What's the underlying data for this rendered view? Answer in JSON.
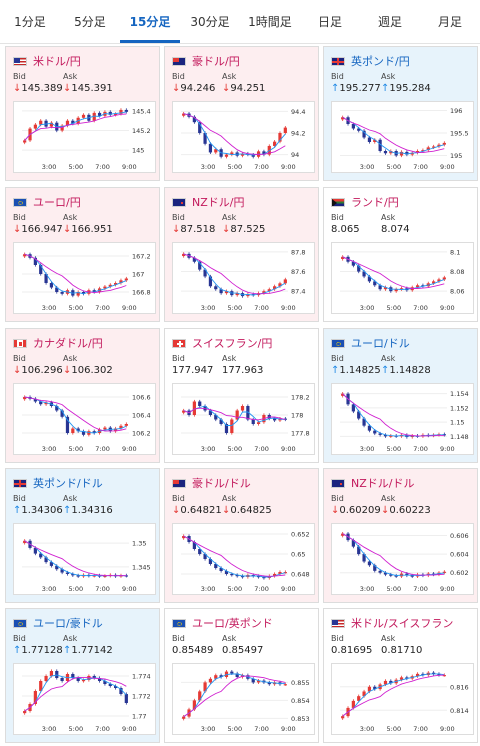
{
  "tabs": [
    {
      "label": "1分足"
    },
    {
      "label": "5分足"
    },
    {
      "label": "15分足",
      "active": true
    },
    {
      "label": "30分足"
    },
    {
      "label": "1時間足"
    },
    {
      "label": "日足"
    },
    {
      "label": "週足"
    },
    {
      "label": "月足"
    }
  ],
  "colors": {
    "accent": "#1565c0",
    "down_bg": "#fdeef0",
    "up_bg": "#e7f3fb",
    "candle_up": "#e53935",
    "candle_down": "#283593",
    "ma_short": "#2196f3",
    "ma_long": "#d020d0"
  },
  "bid_label": "Bid",
  "ask_label": "Ask",
  "cards": [
    {
      "pair": "米ドル/円",
      "flag": "us-flag-icon",
      "direction": "down",
      "bid": "145.389",
      "ask": "145.391",
      "chart_data": {
        "type": "line",
        "x_ticks": [
          "3:00",
          "5:00",
          "7:00",
          "9:00"
        ],
        "y_ticks": [
          "145",
          "145.2",
          "145.4"
        ],
        "ylim": [
          144.9,
          145.45
        ],
        "values": [
          145.1,
          145.22,
          145.26,
          145.3,
          145.24,
          145.28,
          145.2,
          145.25,
          145.3,
          145.27,
          145.33,
          145.36,
          145.3,
          145.38,
          145.35,
          145.39,
          145.36,
          145.37,
          145.41,
          145.39
        ]
      }
    },
    {
      "pair": "豪ドル/円",
      "flag": "au-flag-icon",
      "direction": "down",
      "bid": "94.246",
      "ask": "94.251",
      "chart_data": {
        "type": "line",
        "x_ticks": [
          "3:00",
          "5:00",
          "7:00",
          "9:00"
        ],
        "y_ticks": [
          "94",
          "94.2",
          "94.4"
        ],
        "ylim": [
          93.95,
          94.45
        ],
        "values": [
          94.38,
          94.35,
          94.3,
          94.2,
          94.1,
          94.02,
          94.05,
          93.98,
          94.0,
          94.02,
          93.99,
          94.01,
          94.0,
          93.98,
          94.03,
          94.0,
          94.08,
          94.12,
          94.2,
          94.25
        ]
      }
    },
    {
      "pair": "英ポンド/円",
      "flag": "uk-flag-icon",
      "direction": "up",
      "bid": "195.277",
      "ask": "195.284",
      "chart_data": {
        "type": "line",
        "x_ticks": [
          "3:00",
          "5:00",
          "7:00",
          "9:00"
        ],
        "y_ticks": [
          "195",
          "195.5",
          "196"
        ],
        "ylim": [
          194.9,
          196.1
        ],
        "values": [
          195.85,
          195.7,
          195.6,
          195.55,
          195.4,
          195.3,
          195.35,
          195.1,
          195.05,
          195.1,
          195.0,
          195.08,
          195.02,
          195.06,
          195.1,
          195.12,
          195.18,
          195.2,
          195.24,
          195.28
        ]
      }
    },
    {
      "pair": "ユーロ/円",
      "flag": "eu-flag-icon",
      "direction": "down",
      "bid": "166.947",
      "ask": "166.951",
      "chart_data": {
        "type": "line",
        "x_ticks": [
          "3:00",
          "5:00",
          "7:00",
          "9:00"
        ],
        "y_ticks": [
          "166.8",
          "167",
          "167.2"
        ],
        "ylim": [
          166.7,
          167.3
        ],
        "values": [
          167.22,
          167.18,
          167.1,
          167.0,
          166.9,
          166.85,
          166.8,
          166.78,
          166.82,
          166.76,
          166.8,
          166.78,
          166.82,
          166.8,
          166.84,
          166.86,
          166.88,
          166.9,
          166.93,
          166.95
        ]
      }
    },
    {
      "pair": "NZドル/円",
      "flag": "nz-flag-icon",
      "direction": "down",
      "bid": "87.518",
      "ask": "87.525",
      "chart_data": {
        "type": "line",
        "x_ticks": [
          "3:00",
          "5:00",
          "7:00",
          "9:00"
        ],
        "y_ticks": [
          "87.4",
          "87.6",
          "87.8"
        ],
        "ylim": [
          87.3,
          87.85
        ],
        "values": [
          87.78,
          87.74,
          87.7,
          87.62,
          87.55,
          87.45,
          87.42,
          87.38,
          87.4,
          87.36,
          87.38,
          87.35,
          87.37,
          87.36,
          87.38,
          87.4,
          87.42,
          87.45,
          87.48,
          87.52
        ]
      }
    },
    {
      "pair": "ランド/円",
      "flag": "za-flag-icon",
      "direction": "flat",
      "bid": "8.065",
      "ask": "8.074",
      "chart_data": {
        "type": "line",
        "x_ticks": [
          "3:00",
          "5:00",
          "7:00",
          "9:00"
        ],
        "y_ticks": [
          "8.06",
          "8.08",
          "8.1"
        ],
        "ylim": [
          8.05,
          8.105
        ],
        "values": [
          8.095,
          8.09,
          8.086,
          8.08,
          8.075,
          8.07,
          8.066,
          8.062,
          8.064,
          8.06,
          8.062,
          8.063,
          8.061,
          8.064,
          8.066,
          8.065,
          8.068,
          8.07,
          8.072,
          8.074
        ]
      }
    },
    {
      "pair": "カナダドル/円",
      "flag": "ca-flag-icon",
      "direction": "down",
      "bid": "106.296",
      "ask": "106.302",
      "chart_data": {
        "type": "line",
        "x_ticks": [
          "3:00",
          "5:00",
          "7:00",
          "9:00"
        ],
        "y_ticks": [
          "106.2",
          "106.4",
          "106.6"
        ],
        "ylim": [
          106.1,
          106.7
        ],
        "values": [
          106.6,
          106.58,
          106.55,
          106.52,
          106.54,
          106.5,
          106.45,
          106.38,
          106.2,
          106.25,
          106.22,
          106.18,
          106.22,
          106.2,
          106.24,
          106.26,
          106.22,
          106.25,
          106.28,
          106.3
        ]
      }
    },
    {
      "pair": "スイスフラン/円",
      "flag": "ch-flag-icon",
      "direction": "flat",
      "bid": "177.947",
      "ask": "177.963",
      "chart_data": {
        "type": "line",
        "x_ticks": [
          "3:00",
          "5:00",
          "7:00",
          "9:00"
        ],
        "y_ticks": [
          "177.8",
          "178",
          "178.2"
        ],
        "ylim": [
          177.7,
          178.3
        ],
        "values": [
          178.05,
          178.0,
          178.15,
          178.1,
          178.05,
          178.0,
          177.95,
          177.9,
          177.8,
          177.95,
          178.05,
          178.1,
          177.95,
          177.9,
          177.92,
          178.0,
          177.96,
          177.94,
          177.96,
          177.95
        ]
      }
    },
    {
      "pair": "ユーロ/ドル",
      "flag": "eu-us-flag-icon",
      "direction": "up",
      "bid": "1.14825",
      "ask": "1.14828",
      "chart_data": {
        "type": "line",
        "x_ticks": [
          "3:00",
          "5:00",
          "7:00",
          "9:00"
        ],
        "y_ticks": [
          "1.148",
          "1.15",
          "1.152",
          "1.154"
        ],
        "ylim": [
          1.1472,
          1.1548
        ],
        "values": [
          1.154,
          1.1525,
          1.1515,
          1.1505,
          1.1495,
          1.1488,
          1.1484,
          1.1482,
          1.148,
          1.1481,
          1.148,
          1.1482,
          1.1479,
          1.1481,
          1.148,
          1.1482,
          1.1481,
          1.1482,
          1.1483,
          1.1482
        ]
      }
    },
    {
      "pair": "英ポンド/ドル",
      "flag": "uk-us-flag-icon",
      "direction": "up",
      "bid": "1.34306",
      "ask": "1.34316",
      "chart_data": {
        "type": "line",
        "x_ticks": [
          "3:00",
          "5:00",
          "7:00",
          "9:00"
        ],
        "y_ticks": [
          "1.345",
          "1.35"
        ],
        "ylim": [
          1.3418,
          1.3532
        ],
        "values": [
          1.3505,
          1.349,
          1.3478,
          1.347,
          1.346,
          1.3452,
          1.3445,
          1.3438,
          1.3435,
          1.3432,
          1.343,
          1.3433,
          1.3431,
          1.3432,
          1.343,
          1.3431,
          1.3433,
          1.343,
          1.3432,
          1.3431
        ]
      }
    },
    {
      "pair": "豪ドル/ドル",
      "flag": "au-us-flag-icon",
      "direction": "down",
      "bid": "0.64821",
      "ask": "0.64825",
      "chart_data": {
        "type": "line",
        "x_ticks": [
          "3:00",
          "5:00",
          "7:00",
          "9:00"
        ],
        "y_ticks": [
          "0.648",
          "0.65",
          "0.652"
        ],
        "ylim": [
          0.6472,
          0.6526
        ],
        "values": [
          0.6518,
          0.6512,
          0.6505,
          0.65,
          0.6495,
          0.649,
          0.6486,
          0.6483,
          0.648,
          0.6479,
          0.6478,
          0.6477,
          0.6479,
          0.6478,
          0.6477,
          0.6476,
          0.6478,
          0.648,
          0.6482,
          0.6482
        ]
      }
    },
    {
      "pair": "NZドル/ドル",
      "flag": "nz-us-flag-icon",
      "direction": "down",
      "bid": "0.60209",
      "ask": "0.60223",
      "chart_data": {
        "type": "line",
        "x_ticks": [
          "3:00",
          "5:00",
          "7:00",
          "9:00"
        ],
        "y_ticks": [
          "0.602",
          "0.604",
          "0.606"
        ],
        "ylim": [
          0.601,
          0.6068
        ],
        "values": [
          0.6062,
          0.6055,
          0.6048,
          0.604,
          0.6032,
          0.6028,
          0.6022,
          0.602,
          0.6018,
          0.6017,
          0.6016,
          0.6019,
          0.6017,
          0.6016,
          0.6018,
          0.6017,
          0.6019,
          0.6018,
          0.602,
          0.6021
        ]
      }
    },
    {
      "pair": "ユーロ/豪ドル",
      "flag": "eu-au-flag-icon",
      "direction": "up",
      "bid": "1.77128",
      "ask": "1.77142",
      "chart_data": {
        "type": "line",
        "x_ticks": [
          "3:00",
          "5:00",
          "7:00",
          "9:00"
        ],
        "y_ticks": [
          "1.77",
          "1.772",
          "1.774"
        ],
        "ylim": [
          1.7694,
          1.7748
        ],
        "values": [
          1.7705,
          1.7712,
          1.7725,
          1.7735,
          1.774,
          1.7745,
          1.7738,
          1.7735,
          1.7742,
          1.7738,
          1.7735,
          1.7736,
          1.774,
          1.7738,
          1.7735,
          1.7732,
          1.773,
          1.7728,
          1.7722,
          1.7713
        ]
      }
    },
    {
      "pair": "ユーロ/英ポンド",
      "flag": "eu-uk-flag-icon",
      "direction": "flat",
      "bid": "0.85489",
      "ask": "0.85497",
      "chart_data": {
        "type": "line",
        "x_ticks": [
          "3:00",
          "5:00",
          "7:00",
          "9:00"
        ],
        "y_ticks": [
          "0.853",
          "0.854",
          "0.855"
        ],
        "ylim": [
          0.8528,
          0.8558
        ],
        "values": [
          0.8531,
          0.8535,
          0.854,
          0.8545,
          0.855,
          0.8552,
          0.8554,
          0.8553,
          0.8556,
          0.8555,
          0.8553,
          0.8554,
          0.8552,
          0.855,
          0.8551,
          0.855,
          0.8549,
          0.855,
          0.8549,
          0.8549
        ]
      }
    },
    {
      "pair": "米ドル/スイスフラン",
      "flag": "us-ch-flag-icon",
      "direction": "flat",
      "bid": "0.81695",
      "ask": "0.81710",
      "chart_data": {
        "type": "line",
        "x_ticks": [
          "3:00",
          "5:00",
          "7:00",
          "9:00"
        ],
        "y_ticks": [
          "0.814",
          "0.816"
        ],
        "ylim": [
          0.813,
          0.8176
        ],
        "values": [
          0.8135,
          0.8142,
          0.8148,
          0.8152,
          0.8156,
          0.816,
          0.8158,
          0.8162,
          0.8165,
          0.8163,
          0.8166,
          0.8168,
          0.8167,
          0.8169,
          0.8171,
          0.817,
          0.8172,
          0.8171,
          0.817,
          0.817
        ]
      }
    }
  ]
}
